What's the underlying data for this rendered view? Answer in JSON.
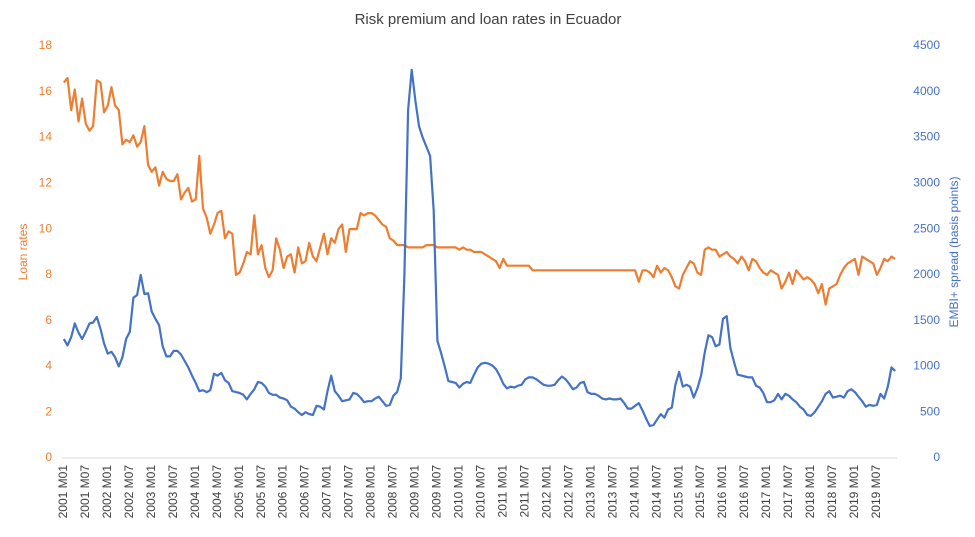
{
  "chart_data": {
    "type": "line",
    "title": "Risk premium and loan rates in Ecuador",
    "y_label": "Loan rates",
    "y2_label": "EMBI+ spread (basis points)",
    "categories": [
      "2001 M01",
      null,
      null,
      null,
      null,
      null,
      "2001 M07",
      null,
      null,
      null,
      null,
      null,
      "2002 M01",
      null,
      null,
      null,
      null,
      null,
      "2002 M07",
      null,
      null,
      null,
      null,
      null,
      "2003 M01",
      null,
      null,
      null,
      null,
      null,
      "2003 M07",
      null,
      null,
      null,
      null,
      null,
      "2004 M01",
      null,
      null,
      null,
      null,
      null,
      "2004 M07",
      null,
      null,
      null,
      null,
      null,
      "2005 M01",
      null,
      null,
      null,
      null,
      null,
      "2005 M07",
      null,
      null,
      null,
      null,
      null,
      "2006 M01",
      null,
      null,
      null,
      null,
      null,
      "2006 M07",
      null,
      null,
      null,
      null,
      null,
      "2007 M01",
      null,
      null,
      null,
      null,
      null,
      "2007 M07",
      null,
      null,
      null,
      null,
      null,
      "2008 M01",
      null,
      null,
      null,
      null,
      null,
      "2008 M07",
      null,
      null,
      null,
      null,
      null,
      "2009 M01",
      null,
      null,
      null,
      null,
      null,
      "2009 M07",
      null,
      null,
      null,
      null,
      null,
      "2010 M01",
      null,
      null,
      null,
      null,
      null,
      "2010 M07",
      null,
      null,
      null,
      null,
      null,
      "2011 M01",
      null,
      null,
      null,
      null,
      null,
      "2011 M07",
      null,
      null,
      null,
      null,
      null,
      "2012 M01",
      null,
      null,
      null,
      null,
      null,
      "2012 M07",
      null,
      null,
      null,
      null,
      null,
      "2013 M01",
      null,
      null,
      null,
      null,
      null,
      "2013 M07",
      null,
      null,
      null,
      null,
      null,
      "2014 M01",
      null,
      null,
      null,
      null,
      null,
      "2014 M07",
      null,
      null,
      null,
      null,
      null,
      "2015 M01",
      null,
      null,
      null,
      null,
      null,
      "2015 M07",
      null,
      null,
      null,
      null,
      null,
      "2016 M01",
      null,
      null,
      null,
      null,
      null,
      "2016 M07",
      null,
      null,
      null,
      null,
      null,
      "2017 M01",
      null,
      null,
      null,
      null,
      null,
      "2017 M07",
      null,
      null,
      null,
      null,
      null,
      "2018 M01",
      null,
      null,
      null,
      null,
      null,
      "2018 M07",
      null,
      null,
      null,
      null,
      null,
      "2019 M01",
      null,
      null,
      null,
      null,
      null,
      "2019 M07",
      null,
      null,
      null,
      null,
      null
    ],
    "series": [
      {
        "name": "Loan rates",
        "color": "#ed7d31",
        "axis": "y",
        "values": [
          16.4,
          16.6,
          15.2,
          16.1,
          14.7,
          15.7,
          14.6,
          14.3,
          14.5,
          16.5,
          16.4,
          15.1,
          15.4,
          16.2,
          15.4,
          15.2,
          13.7,
          13.9,
          13.8,
          14.1,
          13.6,
          13.8,
          14.5,
          12.8,
          12.5,
          12.7,
          11.9,
          12.5,
          12.2,
          12.1,
          12.1,
          12.4,
          11.3,
          11.6,
          11.8,
          11.2,
          11.3,
          13.2,
          10.9,
          10.5,
          9.8,
          10.2,
          10.7,
          10.8,
          9.6,
          9.9,
          9.8,
          8.0,
          8.1,
          8.5,
          9.0,
          8.9,
          10.6,
          8.9,
          9.3,
          8.3,
          7.9,
          8.2,
          9.6,
          9.1,
          8.3,
          8.8,
          8.9,
          8.1,
          9.2,
          8.5,
          8.6,
          9.4,
          8.8,
          8.6,
          9.2,
          9.8,
          8.9,
          9.6,
          9.4,
          10.0,
          10.2,
          9.0,
          10.0,
          10.0,
          10.0,
          10.7,
          10.6,
          10.7,
          10.7,
          10.6,
          10.4,
          10.2,
          10.1,
          9.6,
          9.5,
          9.3,
          9.3,
          9.3,
          9.2,
          9.2,
          9.2,
          9.2,
          9.2,
          9.3,
          9.3,
          9.3,
          9.2,
          9.2,
          9.2,
          9.2,
          9.2,
          9.2,
          9.1,
          9.2,
          9.1,
          9.1,
          9.0,
          9.0,
          9.0,
          8.9,
          8.8,
          8.7,
          8.6,
          8.3,
          8.7,
          8.4,
          8.4,
          8.4,
          8.4,
          8.4,
          8.4,
          8.4,
          8.2,
          8.2,
          8.2,
          8.2,
          8.2,
          8.2,
          8.2,
          8.2,
          8.2,
          8.2,
          8.2,
          8.2,
          8.2,
          8.2,
          8.2,
          8.2,
          8.2,
          8.2,
          8.2,
          8.2,
          8.2,
          8.2,
          8.2,
          8.2,
          8.2,
          8.2,
          8.2,
          8.2,
          8.2,
          7.7,
          8.2,
          8.2,
          8.1,
          7.9,
          8.4,
          8.1,
          8.3,
          8.2,
          7.9,
          7.5,
          7.4,
          8.0,
          8.3,
          8.6,
          8.5,
          8.1,
          8.0,
          9.1,
          9.2,
          9.1,
          9.1,
          8.8,
          8.9,
          9.0,
          8.8,
          8.7,
          8.5,
          8.8,
          8.6,
          8.2,
          8.7,
          8.6,
          8.3,
          8.1,
          8.0,
          8.2,
          8.1,
          8.0,
          7.4,
          7.7,
          8.1,
          7.6,
          8.2,
          8.0,
          7.8,
          7.9,
          7.8,
          7.6,
          7.2,
          7.6,
          6.7,
          7.4,
          7.5,
          7.6,
          8.0,
          8.3,
          8.5,
          8.6,
          8.7,
          8.0,
          8.8,
          8.7,
          8.6,
          8.5,
          8.0,
          8.3,
          8.7,
          8.6,
          8.8,
          8.7
        ]
      },
      {
        "name": "EMBI+ spread",
        "color": "#4472c4",
        "axis": "y2",
        "values": [
          1300,
          1230,
          1320,
          1470,
          1370,
          1300,
          1380,
          1470,
          1480,
          1540,
          1410,
          1250,
          1140,
          1160,
          1100,
          1000,
          1100,
          1300,
          1380,
          1750,
          1780,
          2000,
          1790,
          1800,
          1600,
          1520,
          1450,
          1220,
          1110,
          1110,
          1170,
          1170,
          1130,
          1060,
          990,
          900,
          820,
          730,
          740,
          720,
          740,
          920,
          900,
          930,
          850,
          820,
          730,
          720,
          710,
          690,
          640,
          700,
          750,
          830,
          820,
          780,
          710,
          690,
          690,
          660,
          650,
          630,
          560,
          540,
          500,
          470,
          500,
          480,
          470,
          570,
          560,
          530,
          730,
          900,
          730,
          680,
          620,
          630,
          640,
          710,
          700,
          660,
          610,
          620,
          620,
          650,
          670,
          620,
          570,
          580,
          680,
          720,
          870,
          2000,
          3800,
          4240,
          3900,
          3620,
          3500,
          3400,
          3300,
          2700,
          1280,
          1150,
          1000,
          840,
          830,
          820,
          770,
          810,
          830,
          820,
          910,
          990,
          1030,
          1040,
          1030,
          1010,
          970,
          900,
          810,
          760,
          780,
          770,
          790,
          800,
          860,
          880,
          880,
          860,
          830,
          800,
          790,
          790,
          800,
          850,
          890,
          860,
          810,
          750,
          770,
          820,
          830,
          720,
          700,
          700,
          680,
          650,
          640,
          650,
          640,
          640,
          650,
          600,
          540,
          540,
          570,
          600,
          520,
          430,
          350,
          360,
          420,
          480,
          440,
          530,
          550,
          800,
          940,
          780,
          800,
          780,
          660,
          760,
          900,
          1150,
          1340,
          1320,
          1220,
          1240,
          1520,
          1550,
          1200,
          1050,
          910,
          900,
          890,
          880,
          880,
          790,
          770,
          710,
          610,
          610,
          630,
          700,
          640,
          700,
          680,
          640,
          610,
          560,
          530,
          470,
          460,
          500,
          560,
          620,
          700,
          730,
          660,
          670,
          680,
          660,
          730,
          750,
          720,
          670,
          620,
          560,
          580,
          570,
          580,
          700,
          650,
          780,
          990,
          950
        ]
      }
    ],
    "ylim": [
      0,
      18
    ],
    "yticks": [
      0,
      2,
      4,
      6,
      8,
      10,
      12,
      14,
      16,
      18
    ],
    "y2lim": [
      0,
      4500
    ],
    "y2ticks": [
      0,
      500,
      1000,
      1500,
      2000,
      2500,
      3000,
      3500,
      4000,
      4500
    ],
    "grid": false
  }
}
